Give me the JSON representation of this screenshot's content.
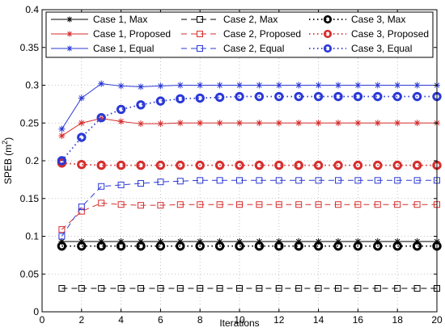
{
  "chart_data": {
    "type": "line",
    "title": "",
    "xlabel": "Iterations",
    "ylabel": "SPEB (m",
    "ylabel_sup": "2",
    "ylabel_close": ")",
    "xlim": [
      0,
      20
    ],
    "ylim": [
      0,
      0.4
    ],
    "xticks": [
      0,
      2,
      4,
      6,
      8,
      10,
      12,
      14,
      16,
      18,
      20
    ],
    "xtick_labels": [
      "0",
      "2",
      "4",
      "6",
      "8",
      "10",
      "12",
      "14",
      "16",
      "18",
      "20"
    ],
    "yticks": [
      0,
      0.05,
      0.1,
      0.15,
      0.2,
      0.25,
      0.3,
      0.35,
      0.4
    ],
    "ytick_labels": [
      "0",
      "0.05",
      "0.1",
      "0.15",
      "0.2",
      "0.25",
      "0.3",
      "0.35",
      "0.4"
    ],
    "grid": true,
    "grid_style": "dotted",
    "legend_position": "top",
    "x": [
      1,
      2,
      3,
      4,
      5,
      6,
      7,
      8,
      9,
      10,
      11,
      12,
      13,
      14,
      15,
      16,
      17,
      18,
      19,
      20
    ],
    "series": [
      {
        "name": "Case 1, Max",
        "color": "#000000",
        "line": "solid",
        "marker": "star",
        "values": [
          0.093,
          0.093,
          0.093,
          0.093,
          0.093,
          0.093,
          0.093,
          0.093,
          0.093,
          0.093,
          0.093,
          0.093,
          0.093,
          0.093,
          0.093,
          0.093,
          0.093,
          0.093,
          0.093,
          0.093
        ]
      },
      {
        "name": "Case 1, Proposed",
        "color": "#d62e2e",
        "line": "solid",
        "marker": "star",
        "values": [
          0.233,
          0.25,
          0.256,
          0.252,
          0.249,
          0.249,
          0.25,
          0.25,
          0.25,
          0.25,
          0.25,
          0.25,
          0.25,
          0.25,
          0.25,
          0.25,
          0.25,
          0.25,
          0.25,
          0.25
        ]
      },
      {
        "name": "Case 1, Equal",
        "color": "#2b39d6",
        "line": "solid",
        "marker": "star",
        "values": [
          0.242,
          0.283,
          0.302,
          0.299,
          0.298,
          0.299,
          0.3,
          0.3,
          0.3,
          0.3,
          0.3,
          0.3,
          0.3,
          0.3,
          0.3,
          0.3,
          0.3,
          0.3,
          0.3,
          0.3
        ]
      },
      {
        "name": "Case 2, Max",
        "color": "#000000",
        "line": "dashed",
        "marker": "square",
        "values": [
          0.031,
          0.031,
          0.031,
          0.031,
          0.031,
          0.031,
          0.031,
          0.031,
          0.031,
          0.031,
          0.031,
          0.031,
          0.031,
          0.031,
          0.031,
          0.031,
          0.031,
          0.031,
          0.031,
          0.031
        ]
      },
      {
        "name": "Case 2, Proposed",
        "color": "#d62e2e",
        "line": "dashed",
        "marker": "square",
        "values": [
          0.109,
          0.133,
          0.144,
          0.142,
          0.141,
          0.141,
          0.142,
          0.142,
          0.142,
          0.142,
          0.142,
          0.142,
          0.142,
          0.142,
          0.142,
          0.142,
          0.142,
          0.142,
          0.142,
          0.142
        ]
      },
      {
        "name": "Case 2, Equal",
        "color": "#2b39d6",
        "line": "dashed",
        "marker": "square",
        "values": [
          0.1,
          0.139,
          0.166,
          0.168,
          0.17,
          0.172,
          0.173,
          0.174,
          0.174,
          0.174,
          0.174,
          0.174,
          0.174,
          0.174,
          0.174,
          0.174,
          0.174,
          0.174,
          0.174,
          0.174
        ]
      },
      {
        "name": "Case 3, Max",
        "color": "#000000",
        "line": "dotted",
        "marker": "circle",
        "values": [
          0.087,
          0.087,
          0.087,
          0.087,
          0.087,
          0.087,
          0.087,
          0.087,
          0.087,
          0.087,
          0.087,
          0.087,
          0.087,
          0.087,
          0.087,
          0.087,
          0.087,
          0.087,
          0.087,
          0.087
        ]
      },
      {
        "name": "Case 3, Proposed",
        "color": "#d62e2e",
        "line": "dotted",
        "marker": "circle",
        "values": [
          0.197,
          0.195,
          0.194,
          0.194,
          0.194,
          0.194,
          0.194,
          0.194,
          0.194,
          0.194,
          0.194,
          0.194,
          0.194,
          0.194,
          0.194,
          0.194,
          0.194,
          0.194,
          0.194,
          0.194
        ]
      },
      {
        "name": "Case 3, Equal",
        "color": "#2b39d6",
        "line": "dotted",
        "marker": "circle",
        "values": [
          0.2,
          0.231,
          0.257,
          0.268,
          0.274,
          0.279,
          0.282,
          0.283,
          0.284,
          0.285,
          0.285,
          0.285,
          0.285,
          0.285,
          0.285,
          0.285,
          0.285,
          0.285,
          0.285,
          0.285
        ]
      }
    ]
  }
}
